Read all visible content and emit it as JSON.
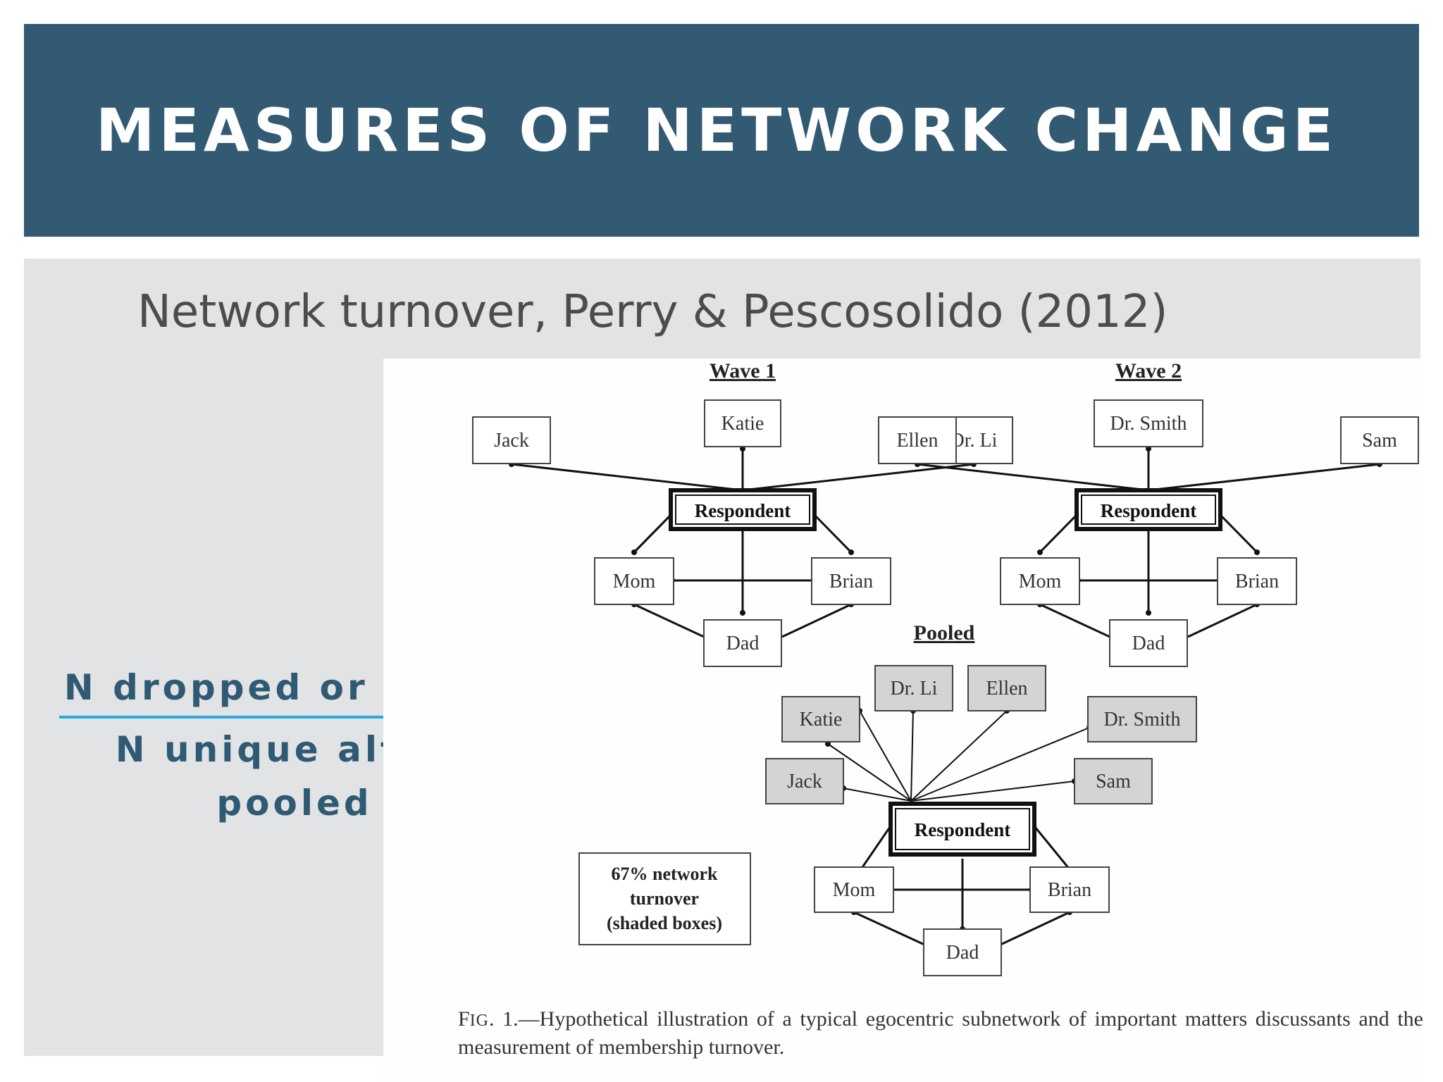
{
  "slide": {
    "title": "MEASURES OF NETWORK CHANGE",
    "subtitle": "Network turnover, Perry & Pescosolido (2012)",
    "fraction": {
      "numerator": "N dropped or added",
      "denominator": "N unique alters pooled"
    }
  },
  "figure": {
    "waves": [
      {
        "heading": "Wave 1",
        "alters": [
          "Jack",
          "Katie",
          "Dr. Li",
          "Mom",
          "Brian",
          "Dad"
        ],
        "center": "Respondent"
      },
      {
        "heading": "Wave 2",
        "alters": [
          "Ellen",
          "Dr. Smith",
          "Sam",
          "Mom",
          "Brian",
          "Dad"
        ],
        "center": "Respondent"
      }
    ],
    "pooled": {
      "heading": "Pooled",
      "shaded_alters": [
        "Dr. Li",
        "Ellen",
        "Katie",
        "Dr. Smith",
        "Jack",
        "Sam"
      ],
      "alters": [
        "Mom",
        "Brian",
        "Dad"
      ],
      "center": "Respondent"
    },
    "note_lines": [
      "67% network",
      "turnover",
      "(shaded boxes)"
    ],
    "caption": {
      "label_f": "F",
      "label_ig": "IG",
      "label_num": ". 1.",
      "text": "—Hypothetical illustration of a typical egocentric subnetwork of important matters discussants and the measurement of membership turnover."
    }
  },
  "colors": {
    "title_bar": "#335a73",
    "content_bg": "#e1e3e5",
    "fraction_text": "#2f5a73",
    "fraction_rule": "#29a9df",
    "shaded_box": "#d4d4d4"
  }
}
